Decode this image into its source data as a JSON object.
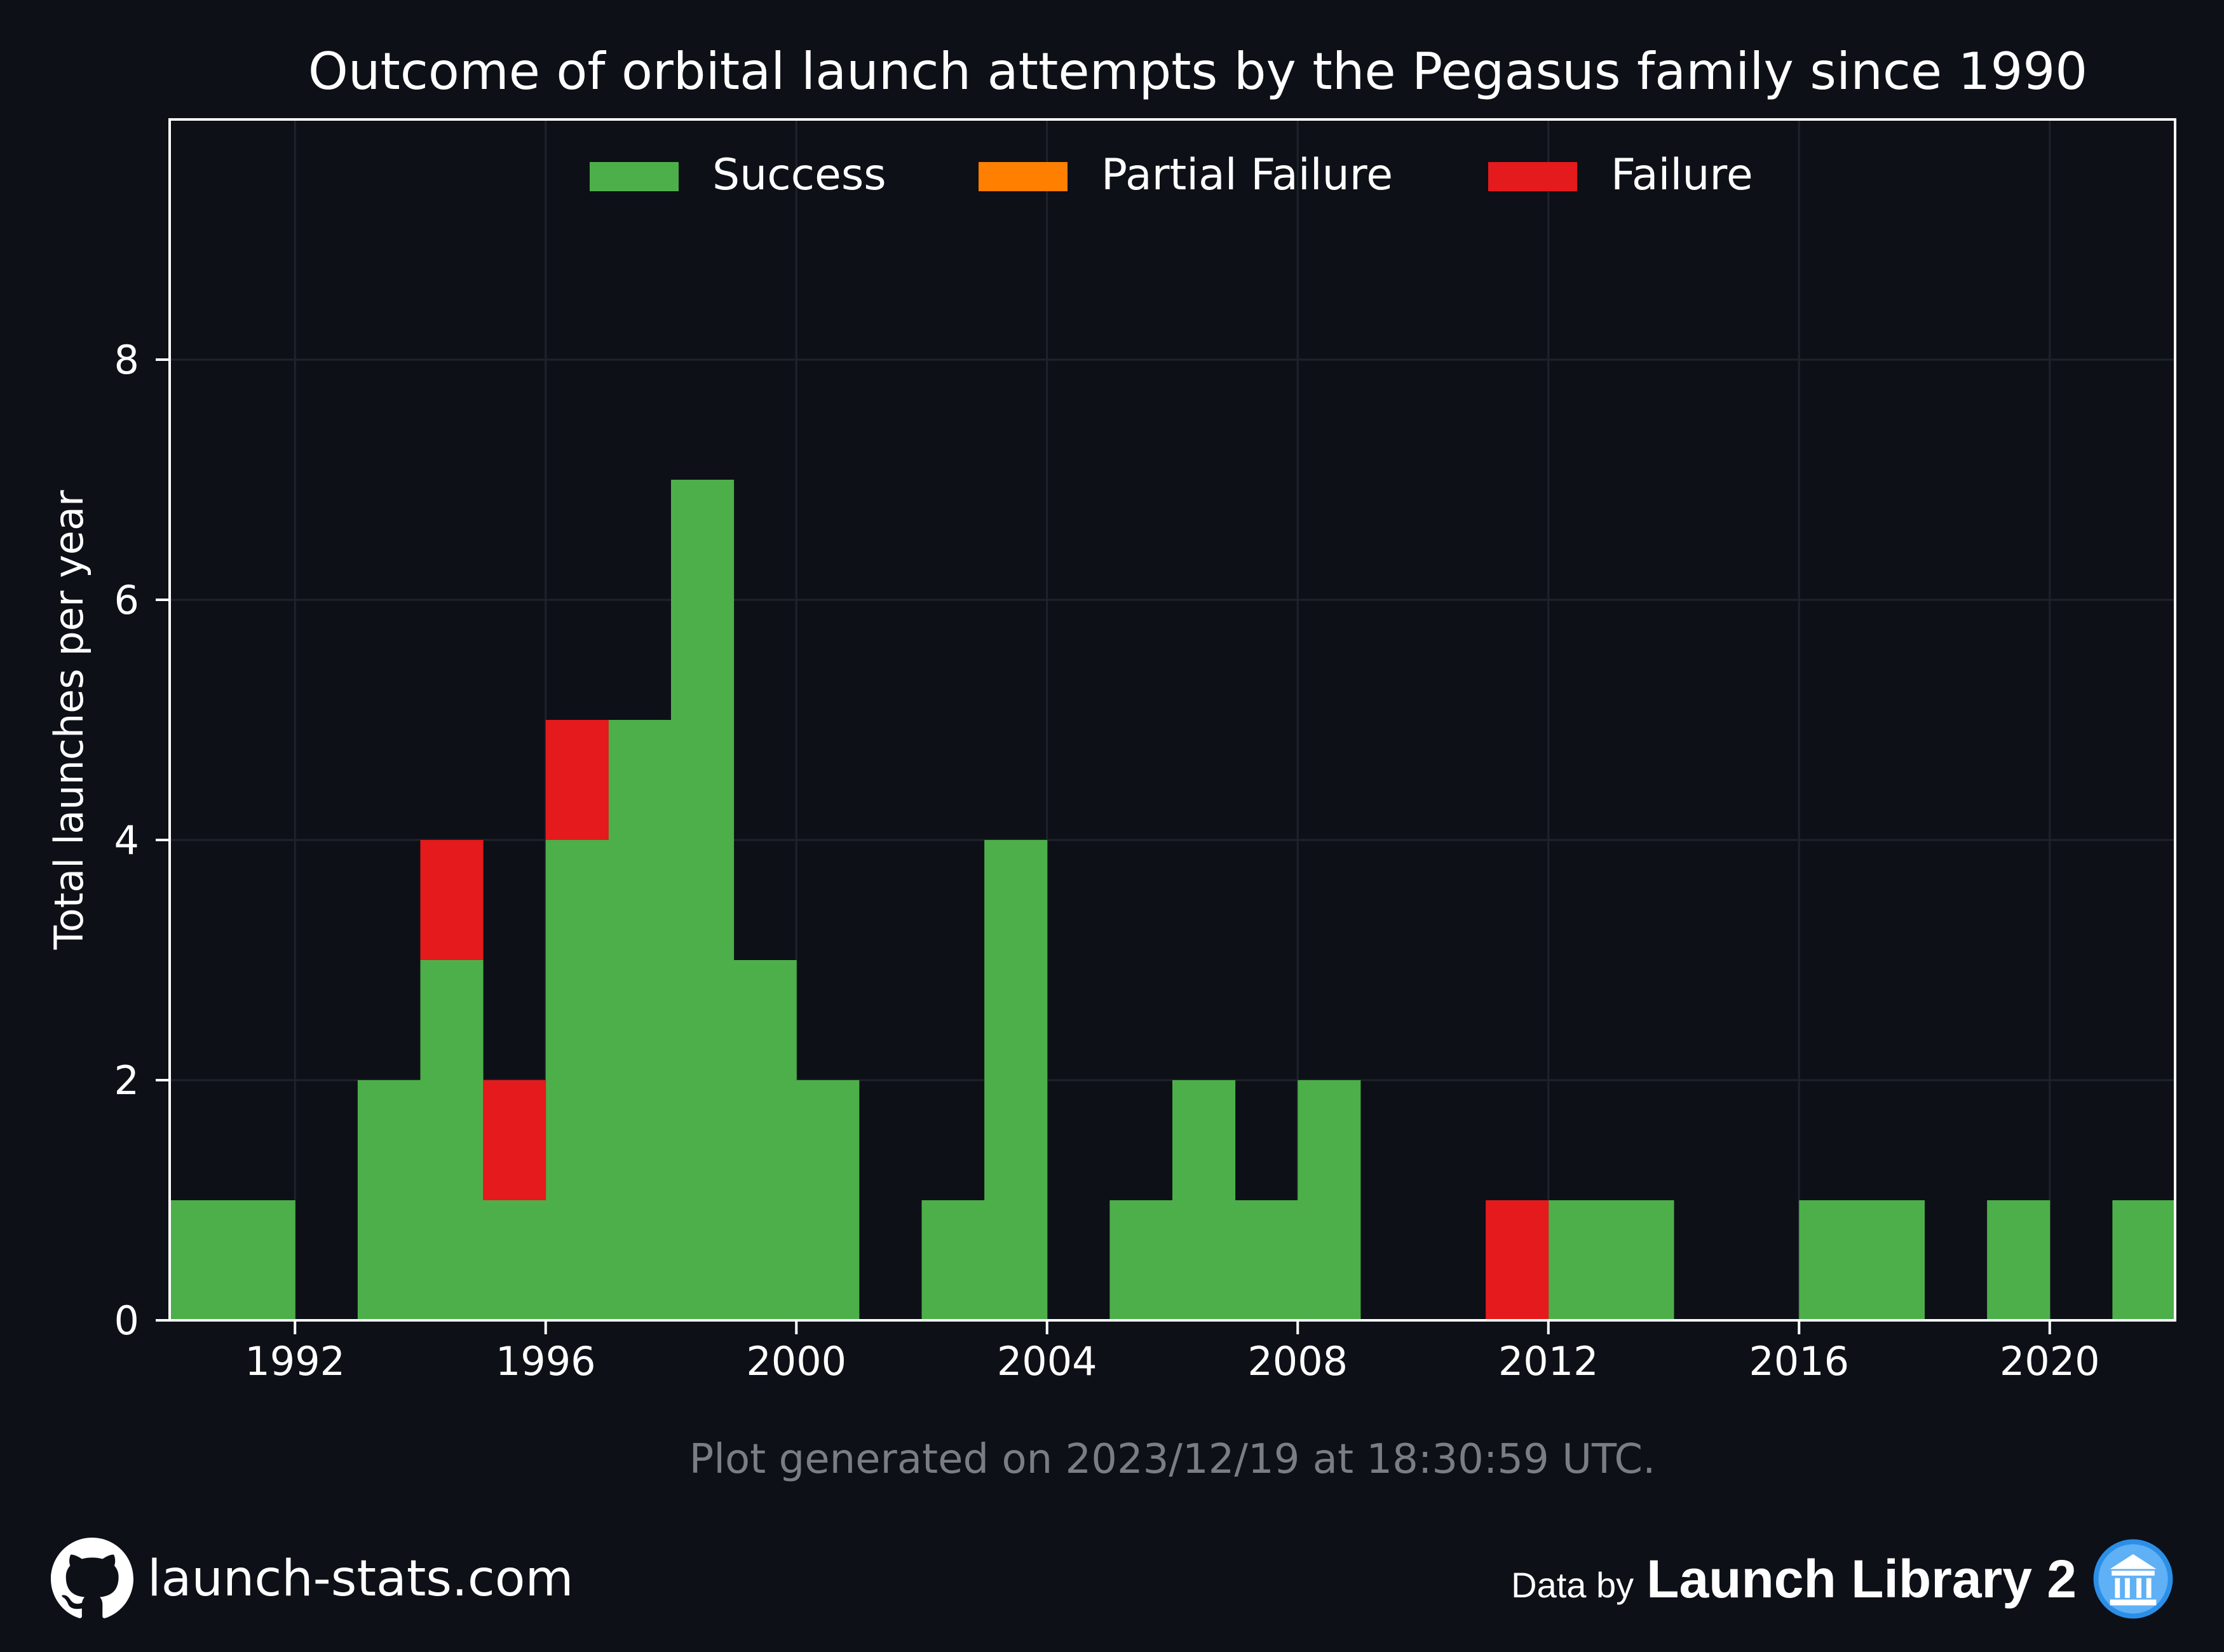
{
  "chart_data": {
    "type": "bar",
    "stacked": true,
    "title": "Outcome of orbital launch attempts by the Pegasus family since 1990",
    "xlabel": "",
    "ylabel": "Total launches per year",
    "xlim": [
      1990,
      2022
    ],
    "ylim": [
      0,
      10
    ],
    "xticks": [
      1992,
      1996,
      2000,
      2004,
      2008,
      2012,
      2016,
      2020
    ],
    "yticks": [
      0,
      2,
      4,
      6,
      8
    ],
    "grid": true,
    "legend": {
      "placement": "top-center",
      "columns": 3
    },
    "categories": [
      1990,
      1991,
      1992,
      1993,
      1994,
      1995,
      1996,
      1997,
      1998,
      1999,
      2000,
      2001,
      2002,
      2003,
      2004,
      2005,
      2006,
      2007,
      2008,
      2009,
      2010,
      2011,
      2012,
      2013,
      2014,
      2015,
      2016,
      2017,
      2018,
      2019,
      2020,
      2021
    ],
    "series": [
      {
        "name": "Success",
        "color": "#4daf4a",
        "values": [
          1,
          1,
          0,
          2,
          3,
          1,
          4,
          5,
          7,
          3,
          2,
          0,
          1,
          4,
          0,
          1,
          2,
          1,
          2,
          0,
          0,
          0,
          1,
          1,
          0,
          0,
          1,
          1,
          0,
          1,
          0,
          1
        ]
      },
      {
        "name": "Partial Failure",
        "color": "#ff7f00",
        "values": [
          0,
          0,
          0,
          0,
          0,
          0,
          0,
          0,
          0,
          0,
          0,
          0,
          0,
          0,
          0,
          0,
          0,
          0,
          0,
          0,
          0,
          0,
          0,
          0,
          0,
          0,
          0,
          0,
          0,
          0,
          0,
          0
        ]
      },
      {
        "name": "Failure",
        "color": "#e41a1c",
        "values": [
          0,
          0,
          0,
          0,
          1,
          1,
          1,
          0,
          0,
          0,
          0,
          0,
          0,
          0,
          0,
          0,
          0,
          0,
          0,
          0,
          0,
          1,
          0,
          0,
          0,
          0,
          0,
          0,
          0,
          0,
          0,
          0
        ]
      }
    ],
    "annotation": "Plot generated on 2023/12/19 at 18:30:59 UTC."
  },
  "colors": {
    "background": "#0d1017",
    "text": "#ffffff",
    "annotation": "#7a7d82",
    "grid": "#1e232b",
    "axis": "#ffffff",
    "badge": "#2b8fe8"
  },
  "footer": {
    "site": "launch-stats.com",
    "site_icon": "github-icon",
    "data_prefix": "Data by",
    "data_source": "Launch Library 2",
    "data_icon": "launch-library-icon"
  }
}
